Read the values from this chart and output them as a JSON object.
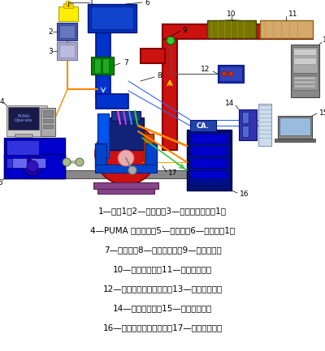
{
  "bg_color": "#ffffff",
  "legend_lines": [
    "1—油符1；2—油耗仪；3—燃油温度控制符1；",
    "4—PUMA 控制系统；5—测功机；6—进气空谓1；",
    "7—空滤器；8—缸压传感器；9—氧传感器；",
    "10—専化转化器；11—排气消声器；",
    "12—过量空气系数分析仪；13—排气分析仪；",
    "14—电荷放大器；15—燃烧分析仪；",
    "16—冷却液温度控制系统；17—转速传感器。"
  ]
}
